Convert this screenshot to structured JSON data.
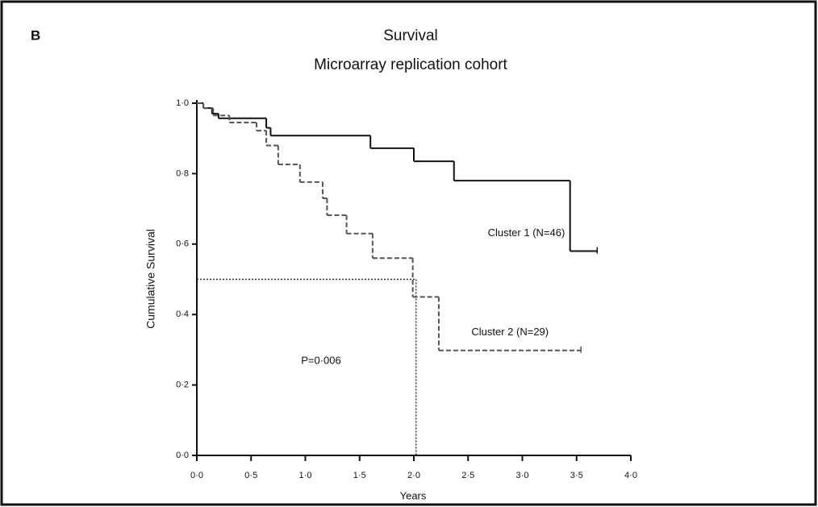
{
  "chart_data": {
    "type": "step",
    "panel_label": "B",
    "title": "Survival",
    "subtitle": "Microarray replication cohort",
    "xlabel": "Years",
    "ylabel": "Cumulative Survival",
    "xlim": [
      0,
      4
    ],
    "ylim": [
      0,
      1
    ],
    "xticks": [
      {
        "value": 0,
        "label": "0·0"
      },
      {
        "value": 0.5,
        "label": "0·5"
      },
      {
        "value": 1,
        "label": "1·0"
      },
      {
        "value": 1.5,
        "label": "1·5"
      },
      {
        "value": 2,
        "label": "2·0"
      },
      {
        "value": 2.5,
        "label": "2·5"
      },
      {
        "value": 3,
        "label": "3·0"
      },
      {
        "value": 3.5,
        "label": "3·5"
      },
      {
        "value": 4,
        "label": "4·0"
      }
    ],
    "yticks": [
      {
        "value": 0,
        "label": "0·0"
      },
      {
        "value": 0.2,
        "label": "0·2"
      },
      {
        "value": 0.4,
        "label": "0·4"
      },
      {
        "value": 0.6,
        "label": "0·6"
      },
      {
        "value": 0.8,
        "label": "0·8"
      },
      {
        "value": 1,
        "label": "1·0"
      }
    ],
    "series": [
      {
        "name": "Cluster 1 (N=46)",
        "color": "#111111",
        "dashed": false,
        "x": [
          0,
          0.06,
          0.14,
          0.2,
          0.64,
          0.68,
          1.6,
          2.0,
          2.37,
          3.44,
          3.69
        ],
        "values": [
          1,
          0.986,
          0.97,
          0.957,
          0.93,
          0.908,
          0.872,
          0.835,
          0.78,
          0.58,
          0.58
        ]
      },
      {
        "name": "Cluster 2 (N=29)",
        "color": "#555555",
        "dashed": true,
        "x": [
          0,
          0.06,
          0.15,
          0.3,
          0.55,
          0.64,
          0.75,
          0.95,
          1.16,
          1.2,
          1.38,
          1.62,
          1.99,
          2.23,
          3.54
        ],
        "values": [
          1,
          0.986,
          0.965,
          0.945,
          0.922,
          0.88,
          0.826,
          0.776,
          0.73,
          0.682,
          0.63,
          0.56,
          0.45,
          0.298,
          0.298
        ]
      }
    ],
    "median_line": {
      "x": 2.02,
      "y": 0.5
    },
    "annotation": "P=0·006"
  }
}
